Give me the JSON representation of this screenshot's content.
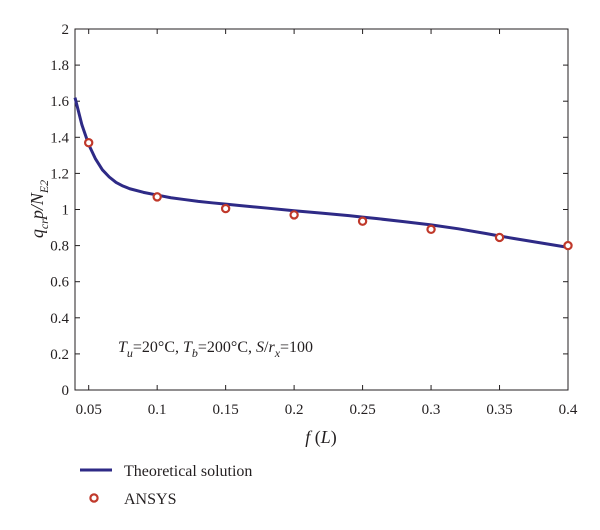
{
  "chart_data": {
    "type": "line",
    "xlabel": "f (L)",
    "ylabel": "q_cr p/N_E2",
    "xlim": [
      0.04,
      0.4
    ],
    "ylim": [
      0,
      2
    ],
    "xticks": [
      0.05,
      0.1,
      0.15,
      0.2,
      0.25,
      0.3,
      0.35,
      0.4
    ],
    "xtick_labels": [
      "0.05",
      "0.1",
      "0.15",
      "0.2",
      "0.25",
      "0.3",
      "0.35",
      "0.4"
    ],
    "yticks": [
      0,
      0.2,
      0.4,
      0.6,
      0.8,
      1,
      1.2,
      1.4,
      1.6,
      1.8,
      2
    ],
    "ytick_labels": [
      "0",
      "0.2",
      "0.4",
      "0.6",
      "0.8",
      "1",
      "1.2",
      "1.4",
      "1.6",
      "1.8",
      "2"
    ],
    "grid": false,
    "legend_position": "bottom-left-outside",
    "annotation": "T_u=20°C, T_b=200°C, S/r_x=100",
    "series": [
      {
        "name": "Theoretical solution",
        "kind": "line",
        "color": "#2e2a86",
        "x": [
          0.04,
          0.045,
          0.05,
          0.055,
          0.06,
          0.065,
          0.07,
          0.075,
          0.08,
          0.09,
          0.1,
          0.11,
          0.12,
          0.13,
          0.14,
          0.15,
          0.16,
          0.18,
          0.2,
          0.22,
          0.24,
          0.25,
          0.26,
          0.28,
          0.3,
          0.32,
          0.34,
          0.35,
          0.36,
          0.38,
          0.4
        ],
        "y": [
          1.62,
          1.47,
          1.36,
          1.28,
          1.22,
          1.18,
          1.15,
          1.13,
          1.115,
          1.095,
          1.08,
          1.065,
          1.055,
          1.045,
          1.037,
          1.03,
          1.022,
          1.008,
          0.993,
          0.98,
          0.966,
          0.958,
          0.95,
          0.933,
          0.915,
          0.893,
          0.867,
          0.853,
          0.84,
          0.815,
          0.79
        ]
      },
      {
        "name": "ANSYS",
        "kind": "marker",
        "color": "#c0392b",
        "x": [
          0.05,
          0.1,
          0.15,
          0.2,
          0.25,
          0.3,
          0.35,
          0.4
        ],
        "y": [
          1.37,
          1.07,
          1.005,
          0.97,
          0.935,
          0.89,
          0.845,
          0.8
        ]
      }
    ]
  }
}
